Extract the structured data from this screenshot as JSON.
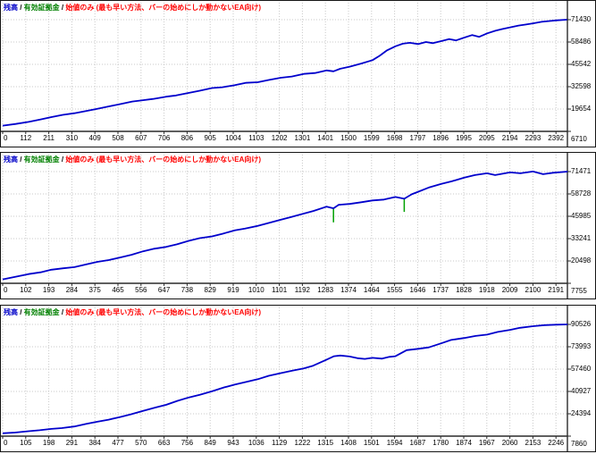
{
  "header": {
    "balance_label": "残高",
    "separator": " / ",
    "equity_label": "有効証拠金",
    "model_label": "始値のみ (最も早い方法、バーの始めにしか動かないEA向け)",
    "balance_color": "#0000C8",
    "equity_color": "#008000",
    "model_color": "#FF0000",
    "separator_color": "#000000"
  },
  "colors": {
    "grid": "#c9c9c9",
    "axis": "#2a2a2a",
    "curve": "#0000CC",
    "equity_mark": "#00A000",
    "panel_border": "#151515",
    "background": "#ffffff"
  },
  "chart_data": [
    {
      "type": "line",
      "title": "残高 / 有効証拠金 / 始値のみ (最も早い方法、バーの始めにしか動かないEA向け)",
      "xlabel": "",
      "ylabel": "",
      "grid": true,
      "legend_position": "top-left",
      "x_ticks": [
        0,
        112,
        211,
        310,
        409,
        508,
        607,
        706,
        806,
        905,
        1004,
        1103,
        1202,
        1301,
        1401,
        1500,
        1599,
        1698,
        1797,
        1896,
        1995,
        2095,
        2194,
        2293,
        2392
      ],
      "y_ticks": [
        71430,
        58486,
        45542,
        32598,
        19654,
        6710
      ],
      "line_color": "#0000CC",
      "series": [
        {
          "name": "残高",
          "points": [
            [
              0,
              10000
            ],
            [
              56,
              11000
            ],
            [
              112,
              12200
            ],
            [
              160,
              13500
            ],
            [
              211,
              15000
            ],
            [
              260,
              16300
            ],
            [
              310,
              17200
            ],
            [
              360,
              18500
            ],
            [
              409,
              19800
            ],
            [
              460,
              21200
            ],
            [
              508,
              22500
            ],
            [
              560,
              24000
            ],
            [
              607,
              24800
            ],
            [
              650,
              25500
            ],
            [
              706,
              26800
            ],
            [
              750,
              27500
            ],
            [
              806,
              29000
            ],
            [
              850,
              30200
            ],
            [
              905,
              31800
            ],
            [
              950,
              32300
            ],
            [
              1004,
              33500
            ],
            [
              1050,
              34800
            ],
            [
              1103,
              35200
            ],
            [
              1150,
              36500
            ],
            [
              1202,
              37800
            ],
            [
              1250,
              38500
            ],
            [
              1301,
              40000
            ],
            [
              1350,
              40500
            ],
            [
              1401,
              42000
            ],
            [
              1430,
              41500
            ],
            [
              1460,
              43000
            ],
            [
              1500,
              44200
            ],
            [
              1550,
              46000
            ],
            [
              1599,
              48000
            ],
            [
              1630,
              50500
            ],
            [
              1660,
              53500
            ],
            [
              1698,
              56000
            ],
            [
              1730,
              57500
            ],
            [
              1760,
              58000
            ],
            [
              1797,
              57300
            ],
            [
              1830,
              58500
            ],
            [
              1860,
              57800
            ],
            [
              1896,
              59000
            ],
            [
              1930,
              60200
            ],
            [
              1960,
              59400
            ],
            [
              1995,
              61000
            ],
            [
              2030,
              62500
            ],
            [
              2060,
              61500
            ],
            [
              2095,
              63500
            ],
            [
              2130,
              65000
            ],
            [
              2160,
              66000
            ],
            [
              2194,
              67000
            ],
            [
              2230,
              68000
            ],
            [
              2260,
              68600
            ],
            [
              2293,
              69300
            ],
            [
              2330,
              70200
            ],
            [
              2360,
              70600
            ],
            [
              2392,
              71000
            ],
            [
              2440,
              71430
            ]
          ]
        }
      ],
      "equity_marks": []
    },
    {
      "type": "line",
      "title": "残高 / 有効証拠金 / 始値のみ (最も早い方法、バーの始めにしか動かないEA向け)",
      "xlabel": "",
      "ylabel": "",
      "grid": true,
      "legend_position": "top-left",
      "x_ticks": [
        0,
        102,
        193,
        284,
        375,
        465,
        556,
        647,
        738,
        829,
        919,
        1010,
        1101,
        1192,
        1283,
        1374,
        1464,
        1555,
        1646,
        1737,
        1828,
        1918,
        2009,
        2100,
        2191
      ],
      "y_ticks": [
        71471,
        58728,
        45985,
        33241,
        20498,
        7755
      ],
      "line_color": "#0000CC",
      "series": [
        {
          "name": "残高",
          "points": [
            [
              0,
              10000
            ],
            [
              50,
              11500
            ],
            [
              102,
              13000
            ],
            [
              150,
              14000
            ],
            [
              193,
              15500
            ],
            [
              240,
              16300
            ],
            [
              284,
              17000
            ],
            [
              330,
              18500
            ],
            [
              375,
              20000
            ],
            [
              420,
              21000
            ],
            [
              465,
              22500
            ],
            [
              510,
              24000
            ],
            [
              556,
              26000
            ],
            [
              600,
              27500
            ],
            [
              647,
              28500
            ],
            [
              690,
              30000
            ],
            [
              738,
              32000
            ],
            [
              780,
              33500
            ],
            [
              829,
              34500
            ],
            [
              870,
              36000
            ],
            [
              919,
              38000
            ],
            [
              960,
              39000
            ],
            [
              1010,
              40500
            ],
            [
              1050,
              42000
            ],
            [
              1101,
              44000
            ],
            [
              1140,
              45500
            ],
            [
              1192,
              47500
            ],
            [
              1230,
              49000
            ],
            [
              1283,
              51500
            ],
            [
              1310,
              50500
            ],
            [
              1330,
              52500
            ],
            [
              1374,
              53000
            ],
            [
              1420,
              54000
            ],
            [
              1464,
              55000
            ],
            [
              1510,
              55500
            ],
            [
              1555,
              57000
            ],
            [
              1590,
              56000
            ],
            [
              1620,
              58500
            ],
            [
              1646,
              60000
            ],
            [
              1690,
              62500
            ],
            [
              1737,
              64500
            ],
            [
              1780,
              66000
            ],
            [
              1828,
              68000
            ],
            [
              1870,
              69500
            ],
            [
              1918,
              70500
            ],
            [
              1950,
              69500
            ],
            [
              2009,
              71000
            ],
            [
              2050,
              70500
            ],
            [
              2100,
              71500
            ],
            [
              2140,
              70000
            ],
            [
              2180,
              70800
            ],
            [
              2237,
              71471
            ]
          ]
        }
      ],
      "equity_marks": [
        {
          "x": 1310,
          "from": 50500,
          "to": 42500
        },
        {
          "x": 1590,
          "from": 56000,
          "to": 48500
        }
      ]
    },
    {
      "type": "line",
      "title": "残高 / 有効証拠金 / 始値のみ (最も早い方法、バーの始めにしか動かないEA向け)",
      "xlabel": "",
      "ylabel": "",
      "grid": true,
      "legend_position": "top-left",
      "x_ticks": [
        0,
        105,
        198,
        291,
        384,
        477,
        570,
        663,
        756,
        849,
        943,
        1036,
        1129,
        1222,
        1315,
        1408,
        1501,
        1594,
        1687,
        1780,
        1874,
        1967,
        2060,
        2153,
        2246
      ],
      "y_ticks": [
        90526,
        73993,
        57460,
        40927,
        24394,
        7860
      ],
      "line_color": "#0000CC",
      "series": [
        {
          "name": "残高",
          "points": [
            [
              0,
              10000
            ],
            [
              50,
              10500
            ],
            [
              105,
              11500
            ],
            [
              150,
              12200
            ],
            [
              198,
              13200
            ],
            [
              240,
              13800
            ],
            [
              291,
              15000
            ],
            [
              340,
              17000
            ],
            [
              384,
              18500
            ],
            [
              430,
              20000
            ],
            [
              477,
              22000
            ],
            [
              520,
              24000
            ],
            [
              570,
              26500
            ],
            [
              620,
              29000
            ],
            [
              663,
              31000
            ],
            [
              710,
              34000
            ],
            [
              756,
              36500
            ],
            [
              800,
              38500
            ],
            [
              849,
              41000
            ],
            [
              900,
              44000
            ],
            [
              943,
              46000
            ],
            [
              990,
              48000
            ],
            [
              1036,
              50000
            ],
            [
              1080,
              52500
            ],
            [
              1129,
              54500
            ],
            [
              1180,
              56500
            ],
            [
              1222,
              58000
            ],
            [
              1260,
              60000
            ],
            [
              1315,
              64500
            ],
            [
              1345,
              67000
            ],
            [
              1370,
              67500
            ],
            [
              1408,
              66800
            ],
            [
              1440,
              65500
            ],
            [
              1470,
              65000
            ],
            [
              1501,
              65800
            ],
            [
              1540,
              65200
            ],
            [
              1570,
              66500
            ],
            [
              1594,
              67000
            ],
            [
              1640,
              71500
            ],
            [
              1687,
              72500
            ],
            [
              1730,
              73500
            ],
            [
              1780,
              76500
            ],
            [
              1820,
              79000
            ],
            [
              1874,
              80500
            ],
            [
              1920,
              82000
            ],
            [
              1967,
              83000
            ],
            [
              2010,
              85000
            ],
            [
              2060,
              86500
            ],
            [
              2100,
              88000
            ],
            [
              2153,
              89200
            ],
            [
              2200,
              90000
            ],
            [
              2246,
              90300
            ],
            [
              2293,
              90526
            ]
          ]
        }
      ],
      "equity_marks": []
    }
  ]
}
